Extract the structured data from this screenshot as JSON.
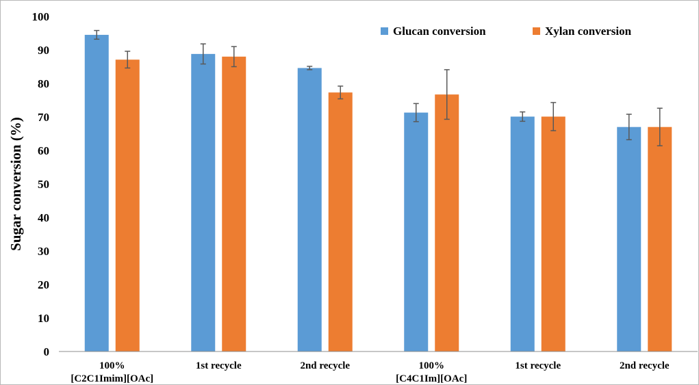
{
  "chart_data": {
    "type": "bar",
    "ylabel": "Sugar conversion (%)",
    "xlabel": "",
    "ylim": [
      0,
      100
    ],
    "yticks": [
      0,
      10,
      20,
      30,
      40,
      50,
      60,
      70,
      80,
      90,
      100
    ],
    "categories": [
      [
        "100%",
        "[C2C1Imim][OAc]"
      ],
      [
        "1st recycle"
      ],
      [
        "2nd recycle"
      ],
      [
        "100%",
        "[C4C1Im][OAc]"
      ],
      [
        "1st recycle"
      ],
      [
        "2nd recycle"
      ]
    ],
    "series": [
      {
        "name": "Glucan conversion",
        "color": "#5b9bd5",
        "values": [
          94.5,
          88.8,
          84.6,
          71.3,
          70.1,
          67.0
        ],
        "errors": [
          1.3,
          3.0,
          0.5,
          2.7,
          1.4,
          3.8
        ]
      },
      {
        "name": "Xylan conversion",
        "color": "#ed7d31",
        "values": [
          87.1,
          88.0,
          77.3,
          76.7,
          70.1,
          67.0
        ],
        "errors": [
          2.5,
          3.0,
          1.9,
          7.4,
          4.2,
          5.6
        ]
      }
    ],
    "legend": "top-right",
    "grid": false
  }
}
